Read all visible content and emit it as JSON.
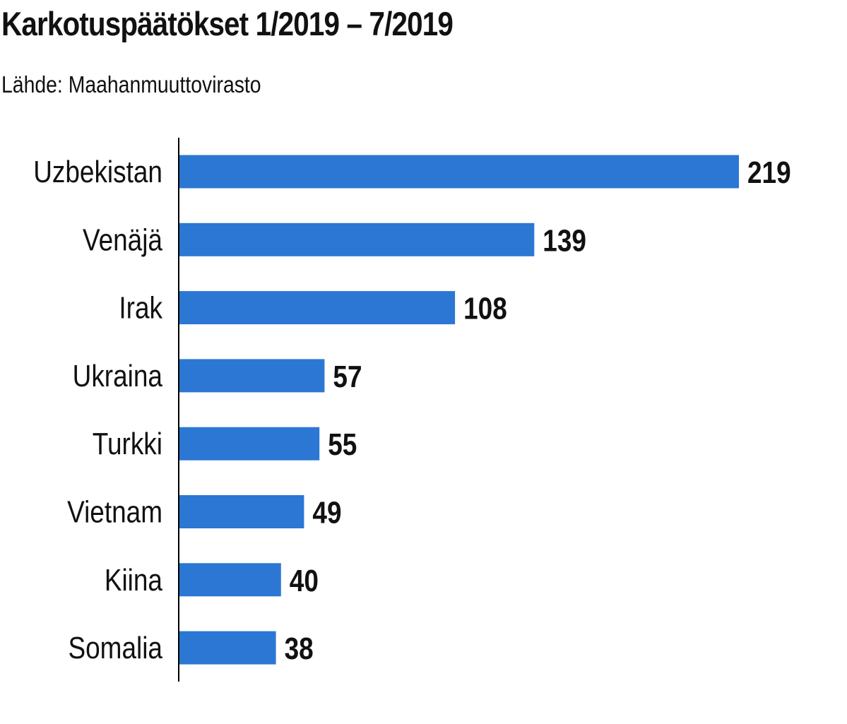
{
  "header": {
    "title": "Karkotuspäätökset 1/2019 – 7/2019",
    "subtitle": "Lähde: Maahanmuuttovirasto"
  },
  "colors": {
    "bar": "#2b77d3",
    "axis": "#000000",
    "text": "#111111"
  },
  "chart_data": {
    "type": "bar",
    "orientation": "horizontal",
    "title": "Karkotuspäätökset 1/2019 – 7/2019",
    "subtitle": "Lähde: Maahanmuuttovirasto",
    "categories": [
      "Uzbekistan",
      "Venäjä",
      "Irak",
      "Ukraina",
      "Turkki",
      "Vietnam",
      "Kiina",
      "Somalia"
    ],
    "values": [
      219,
      139,
      108,
      57,
      55,
      49,
      40,
      38
    ],
    "xlabel": "",
    "ylabel": "",
    "xlim": [
      0,
      219
    ],
    "grid": false,
    "legend": "none"
  }
}
